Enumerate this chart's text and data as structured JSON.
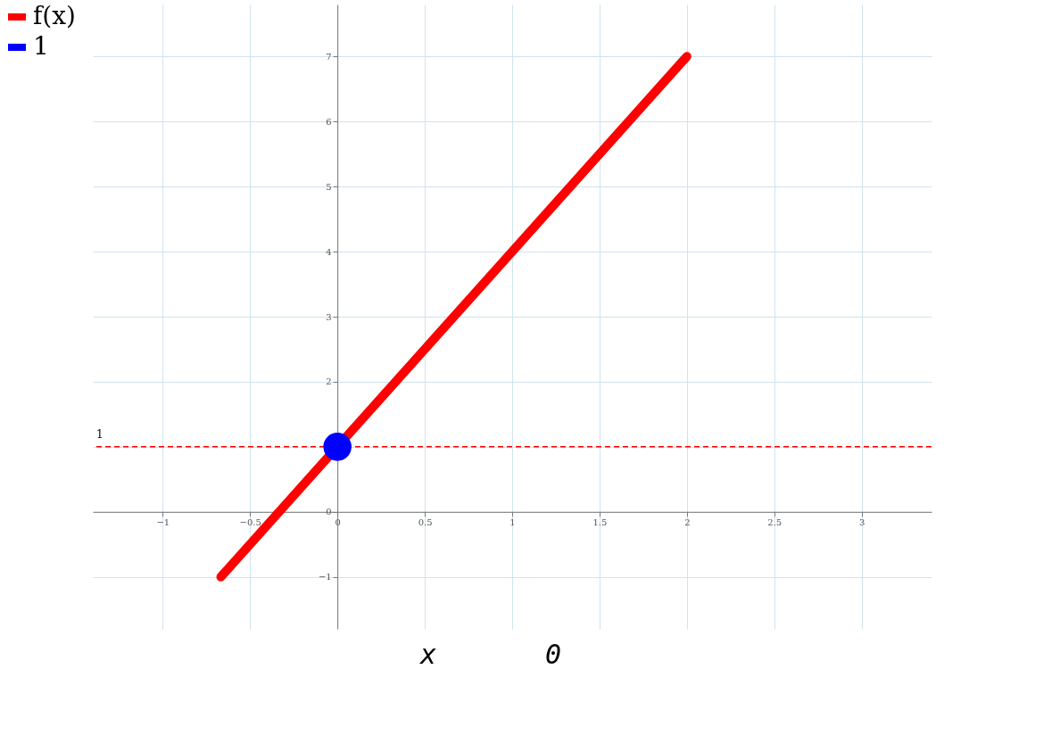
{
  "chart_data": {
    "type": "line",
    "series": [
      {
        "name": "f(x)",
        "type": "line",
        "color": "#ff0000",
        "x": [
          -0.667,
          2
        ],
        "values": [
          -1,
          7
        ]
      },
      {
        "name": "1",
        "type": "scatter",
        "color": "#0000ff",
        "x": [
          0
        ],
        "values": [
          1
        ],
        "marker": "circle"
      }
    ],
    "xlabel": "x",
    "annotations": [
      "0"
    ],
    "xlim": [
      -1.4,
      3.4
    ],
    "ylim": [
      -1.8,
      7.8
    ],
    "xticks": [
      -1,
      -0.5,
      0,
      0.5,
      1,
      1.5,
      2,
      2.5,
      3
    ],
    "yticks": [
      -1,
      0,
      {
        "value": 1,
        "label": null
      },
      2,
      3,
      4,
      5,
      6,
      7
    ],
    "ref_lines": [
      {
        "axis": "y",
        "value": 1,
        "label": "1",
        "color": "#ff0000",
        "line_style": "dashed"
      }
    ],
    "grid": true,
    "legend": "left",
    "line_style": "solid"
  }
}
